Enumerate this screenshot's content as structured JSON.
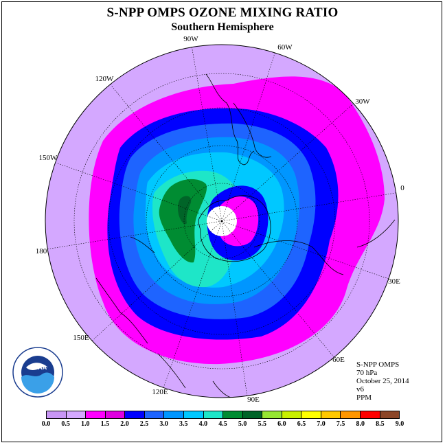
{
  "title": "S-NPP OMPS OZONE MIXING RATIO",
  "subtitle": "Southern Hemisphere",
  "longitude_labels": [
    "90W",
    "60W",
    "30W",
    "0",
    "30E",
    "60E",
    "90E",
    "120E",
    "150E",
    "180",
    "150W",
    "120W"
  ],
  "info": {
    "instrument": "S-NPP OMPS",
    "level": "70 hPa",
    "date": "October 25, 2014",
    "version": "v6",
    "units": "PPM"
  },
  "logo": {
    "text": "NOAA",
    "ring_text": "NATIONAL OCEANIC AND ATMOSPHERIC ADMINISTRATION · U.S. DEPARTMENT OF COMMERCE"
  },
  "colorbar": {
    "ticks": [
      "0.0",
      "0.5",
      "1.0",
      "1.5",
      "2.0",
      "2.5",
      "3.0",
      "3.5",
      "4.0",
      "4.5",
      "5.0",
      "5.5",
      "6.0",
      "6.5",
      "7.0",
      "7.5",
      "8.0",
      "8.5",
      "9.0"
    ],
    "colors": [
      "#c896f5",
      "#d4a8ff",
      "#ff00ff",
      "#e000e0",
      "#0000ff",
      "#1e64ff",
      "#0096ff",
      "#00c8ff",
      "#1ee6c8",
      "#008c32",
      "#006428",
      "#96e632",
      "#c8f000",
      "#ffff00",
      "#ffc800",
      "#ff9600",
      "#ff0000",
      "#8c4628"
    ]
  },
  "map_colors": {
    "outer": "#d4a8ff",
    "c10": "#ff00ff",
    "c15": "#0000ff",
    "c20": "#1e64ff",
    "c25": "#0096ff",
    "c30": "#00c8ff",
    "c35": "#1ee6c8",
    "c40": "#008c32",
    "c45": "#006428"
  }
}
